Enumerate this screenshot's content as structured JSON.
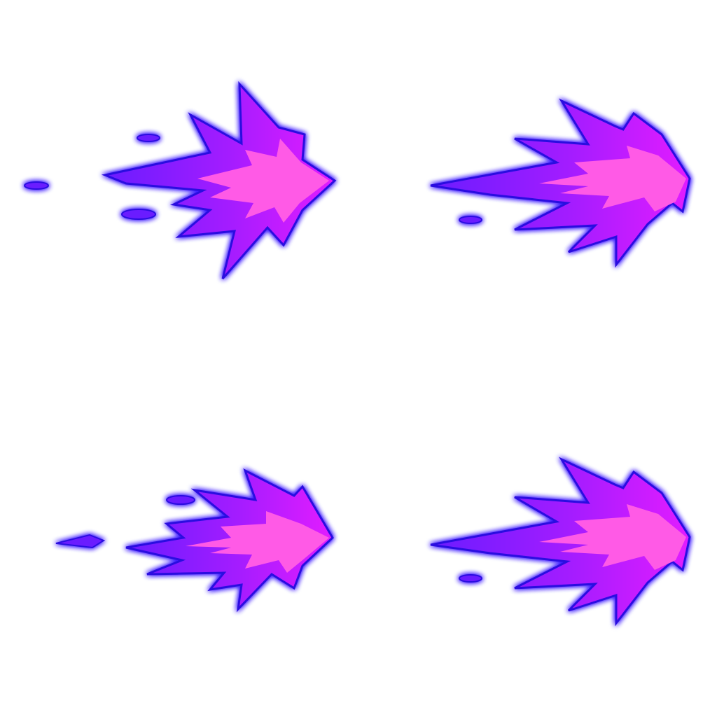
{
  "sprite_sheet": {
    "frame_count": 4,
    "frames": [
      {
        "id": "frame-1",
        "row": 1,
        "column": 1,
        "direction": "right"
      },
      {
        "id": "frame-2",
        "row": 1,
        "column": 2,
        "direction": "right"
      },
      {
        "id": "frame-3",
        "row": 2,
        "column": 1,
        "direction": "right"
      },
      {
        "id": "frame-4",
        "row": 2,
        "column": 2,
        "direction": "right"
      }
    ]
  },
  "colors": {
    "background": "#ffffff",
    "outline_glow": "#3a1cff",
    "outer_flame": "#7a1cff",
    "mid_flame": "#b51cff",
    "core_flame": "#ff5ae6",
    "hot_core": "#ff7df0"
  }
}
